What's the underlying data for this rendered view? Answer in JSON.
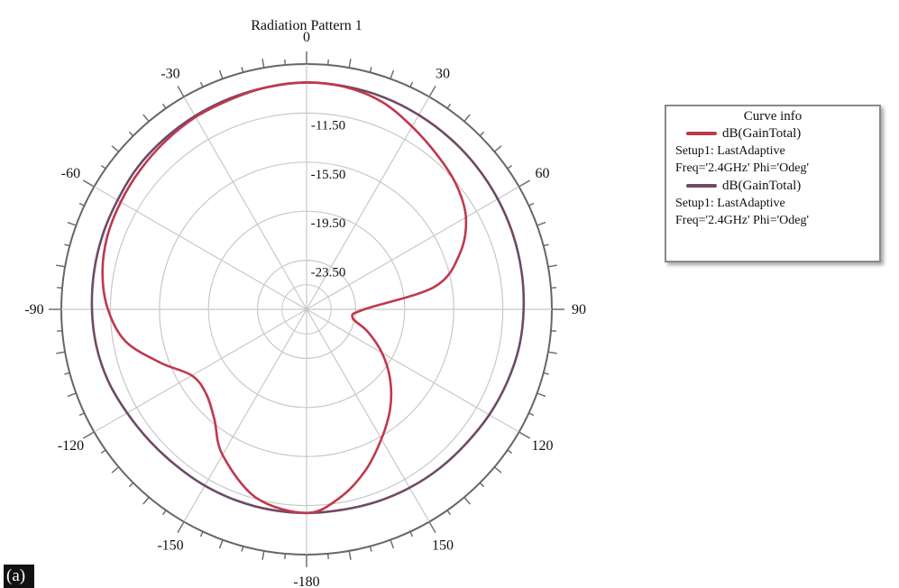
{
  "figure_label": "(a)",
  "colors": {
    "series1": "#c0384c",
    "series2": "#6e4a66",
    "grid": "#c8c8c8",
    "axis": "#666666"
  },
  "legend": {
    "title": "Curve info",
    "entries": [
      {
        "name": "dB(GainTotal)",
        "setup": "Setup1: LastAdaptive",
        "params": "Freq='2.4GHz'  Phi='Odeg'"
      },
      {
        "name": "dB(GainTotal)",
        "setup": "Setup1: LastAdaptive",
        "params": "Freq='2.4GHz'  Phi='Odeg'"
      }
    ]
  },
  "chart_data": {
    "type": "polar-line",
    "title": "Radiation Pattern 1",
    "angle_labels": [
      "0",
      "30",
      "60",
      "90",
      "120",
      "150",
      "-180",
      "-150",
      "-120",
      "-90",
      "-60",
      "-30"
    ],
    "angle_values": [
      0,
      30,
      60,
      90,
      120,
      150,
      180,
      -150,
      -120,
      -90,
      -60,
      -30
    ],
    "radial_tick_labels": [
      "-11.50",
      "-15.50",
      "-19.50",
      "-23.50"
    ],
    "radial_tick_values": [
      -11.5,
      -15.5,
      -19.5,
      -23.5
    ],
    "r_range": [
      -27.5,
      -7.5
    ],
    "series": [
      {
        "name": "dB(GainTotal)",
        "color": "#c0384c",
        "theta": [
          -180,
          -165,
          -150,
          -140,
          -130,
          -120,
          -110,
          -100,
          -90,
          -80,
          -70,
          -60,
          -50,
          -40,
          -30,
          -20,
          -10,
          0,
          10,
          20,
          30,
          40,
          50,
          60,
          70,
          80,
          90,
          100,
          110,
          120,
          130,
          140,
          150,
          160,
          170
        ],
        "gain": [
          -10.9,
          -11.6,
          -13.8,
          -15.8,
          -16.8,
          -16.7,
          -14.8,
          -12.5,
          -11.3,
          -10.6,
          -10.2,
          -10.0,
          -9.8,
          -9.6,
          -9.4,
          -9.3,
          -9.1,
          -9.0,
          -9.1,
          -9.5,
          -10.3,
          -11.0,
          -11.6,
          -12.5,
          -14.2,
          -16.9,
          -22.8,
          -23.7,
          -22.2,
          -20.4,
          -18.6,
          -16.9,
          -15.3,
          -13.5,
          -11.9
        ]
      },
      {
        "name": "dB(GainTotal)",
        "color": "#6e4a66",
        "theta": [
          -180,
          -170,
          -160,
          -150,
          -140,
          -130,
          -120,
          -110,
          -100,
          -90,
          -80,
          -70,
          -60,
          -50,
          -40,
          -30,
          -20,
          -10,
          0,
          10,
          20,
          30,
          40,
          50,
          60,
          70,
          80,
          90,
          100,
          110,
          120,
          130,
          140,
          150,
          160,
          170
        ],
        "gain": [
          -10.9,
          -10.9,
          -10.9,
          -10.9,
          -10.9,
          -10.8,
          -10.6,
          -10.3,
          -10.1,
          -10.0,
          -9.9,
          -9.8,
          -9.7,
          -9.5,
          -9.4,
          -9.3,
          -9.2,
          -9.1,
          -9.0,
          -9.05,
          -9.1,
          -9.2,
          -9.3,
          -9.4,
          -9.5,
          -9.6,
          -9.7,
          -9.8,
          -9.9,
          -10.1,
          -10.3,
          -10.5,
          -10.6,
          -10.7,
          -10.8,
          -10.9
        ]
      }
    ]
  }
}
